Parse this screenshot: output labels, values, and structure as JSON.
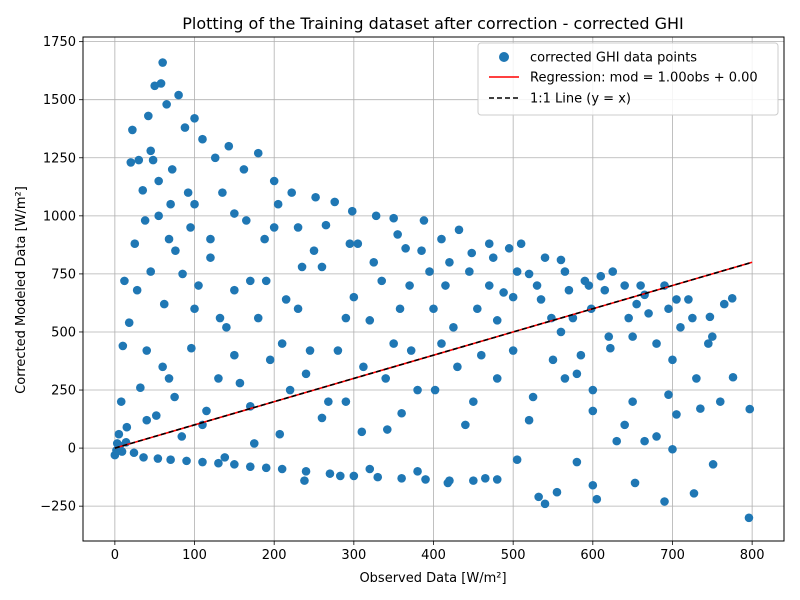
{
  "chart_data": {
    "type": "scatter",
    "title": "Plotting of the Training dataset after correction - corrected GHI",
    "xlabel": "Observed Data [W/m²]",
    "ylabel": "Corrected Modeled Data [W/m²]",
    "xlim": [
      -40,
      840
    ],
    "ylim": [
      -400,
      1770
    ],
    "xticks": [
      0,
      100,
      200,
      300,
      400,
      500,
      600,
      700,
      800
    ],
    "yticks": [
      -250,
      0,
      250,
      500,
      750,
      1000,
      1250,
      1500,
      1750
    ],
    "grid": true,
    "legend_position": "upper-right",
    "colors": {
      "points": "#1f77b4",
      "regression": "#ff0000",
      "identity": "#000000"
    },
    "series": [
      {
        "name": "corrected GHI data points",
        "kind": "scatter",
        "points": [
          [
            797,
            168
          ],
          [
            776,
            305
          ],
          [
            775,
            645
          ],
          [
            751,
            -70
          ],
          [
            750,
            480
          ],
          [
            747,
            565
          ],
          [
            745,
            450
          ],
          [
            727,
            -195
          ],
          [
            735,
            170
          ],
          [
            720,
            640
          ],
          [
            705,
            145
          ],
          [
            700,
            -5
          ],
          [
            695,
            230
          ],
          [
            690,
            700
          ],
          [
            680,
            50
          ],
          [
            670,
            580
          ],
          [
            665,
            30
          ],
          [
            660,
            700
          ],
          [
            653,
            -150
          ],
          [
            650,
            200
          ],
          [
            645,
            560
          ],
          [
            640,
            700
          ],
          [
            630,
            30
          ],
          [
            622,
            430
          ],
          [
            610,
            740
          ],
          [
            605,
            -220
          ],
          [
            600,
            160
          ],
          [
            598,
            600
          ],
          [
            590,
            720
          ],
          [
            585,
            400
          ],
          [
            580,
            -60
          ],
          [
            570,
            680
          ],
          [
            565,
            300
          ],
          [
            560,
            810
          ],
          [
            555,
            -190
          ],
          [
            548,
            560
          ],
          [
            540,
            820
          ],
          [
            532,
            -210
          ],
          [
            525,
            220
          ],
          [
            520,
            750
          ],
          [
            510,
            880
          ],
          [
            505,
            -50
          ],
          [
            500,
            420
          ],
          [
            495,
            860
          ],
          [
            488,
            670
          ],
          [
            480,
            300
          ],
          [
            470,
            880
          ],
          [
            465,
            -130
          ],
          [
            455,
            600
          ],
          [
            448,
            840
          ],
          [
            440,
            100
          ],
          [
            432,
            940
          ],
          [
            425,
            520
          ],
          [
            418,
            -150
          ],
          [
            410,
            900
          ],
          [
            402,
            250
          ],
          [
            395,
            760
          ],
          [
            388,
            980
          ],
          [
            380,
            -100
          ],
          [
            372,
            420
          ],
          [
            365,
            860
          ],
          [
            358,
            600
          ],
          [
            350,
            990
          ],
          [
            342,
            80
          ],
          [
            335,
            720
          ],
          [
            328,
            1000
          ],
          [
            320,
            -90
          ],
          [
            312,
            350
          ],
          [
            305,
            880
          ],
          [
            298,
            1020
          ],
          [
            290,
            560
          ],
          [
            283,
            -120
          ],
          [
            276,
            1060
          ],
          [
            268,
            200
          ],
          [
            260,
            780
          ],
          [
            252,
            1080
          ],
          [
            245,
            420
          ],
          [
            238,
            -140
          ],
          [
            230,
            950
          ],
          [
            222,
            1100
          ],
          [
            215,
            640
          ],
          [
            207,
            60
          ],
          [
            200,
            1150
          ],
          [
            195,
            380
          ],
          [
            188,
            900
          ],
          [
            180,
            1270
          ],
          [
            175,
            20
          ],
          [
            170,
            720
          ],
          [
            162,
            1200
          ],
          [
            157,
            280
          ],
          [
            150,
            1010
          ],
          [
            143,
            1300
          ],
          [
            138,
            -40
          ],
          [
            132,
            560
          ],
          [
            126,
            1250
          ],
          [
            120,
            900
          ],
          [
            115,
            160
          ],
          [
            110,
            1330
          ],
          [
            105,
            700
          ],
          [
            100,
            1420
          ],
          [
            96,
            430
          ],
          [
            92,
            1100
          ],
          [
            88,
            1380
          ],
          [
            84,
            50
          ],
          [
            80,
            1520
          ],
          [
            76,
            850
          ],
          [
            72,
            1200
          ],
          [
            68,
            300
          ],
          [
            65,
            1480
          ],
          [
            62,
            620
          ],
          [
            60,
            1660
          ],
          [
            58,
            1570
          ],
          [
            55,
            1000
          ],
          [
            52,
            140
          ],
          [
            50,
            1560
          ],
          [
            48,
            1240
          ],
          [
            45,
            760
          ],
          [
            42,
            1430
          ],
          [
            40,
            420
          ],
          [
            38,
            980
          ],
          [
            35,
            1110
          ],
          [
            32,
            260
          ],
          [
            30,
            1240
          ],
          [
            28,
            680
          ],
          [
            25,
            880
          ],
          [
            22,
            1370
          ],
          [
            20,
            1230
          ],
          [
            18,
            540
          ],
          [
            15,
            90
          ],
          [
            12,
            720
          ],
          [
            10,
            440
          ],
          [
            8,
            200
          ],
          [
            5,
            60
          ],
          [
            3,
            20
          ],
          [
            0,
            -30
          ],
          [
            2,
            -10
          ],
          [
            6,
            10
          ],
          [
            9,
            -15
          ],
          [
            14,
            25
          ],
          [
            24,
            -20
          ],
          [
            36,
            -40
          ],
          [
            54,
            -45
          ],
          [
            70,
            -50
          ],
          [
            90,
            -55
          ],
          [
            110,
            -60
          ],
          [
            130,
            -65
          ],
          [
            150,
            -70
          ],
          [
            170,
            -80
          ],
          [
            190,
            -85
          ],
          [
            210,
            -90
          ],
          [
            240,
            -100
          ],
          [
            270,
            -110
          ],
          [
            300,
            -120
          ],
          [
            330,
            -125
          ],
          [
            360,
            -130
          ],
          [
            390,
            -135
          ],
          [
            420,
            -140
          ],
          [
            450,
            -140
          ],
          [
            480,
            -135
          ],
          [
            540,
            -240
          ],
          [
            600,
            -160
          ],
          [
            690,
            -230
          ],
          [
            796,
            -300
          ],
          [
            730,
            300
          ],
          [
            710,
            520
          ],
          [
            760,
            200
          ],
          [
            620,
            480
          ],
          [
            560,
            500
          ],
          [
            470,
            700
          ],
          [
            430,
            350
          ],
          [
            360,
            150
          ],
          [
            290,
            200
          ],
          [
            240,
            320
          ],
          [
            210,
            450
          ],
          [
            180,
            560
          ],
          [
            150,
            680
          ],
          [
            120,
            820
          ],
          [
            95,
            950
          ],
          [
            70,
            1050
          ],
          [
            55,
            1150
          ],
          [
            45,
            1280
          ],
          [
            300,
            650
          ],
          [
            350,
            450
          ],
          [
            400,
            600
          ],
          [
            250,
            850
          ],
          [
            200,
            950
          ],
          [
            150,
            400
          ],
          [
            100,
            600
          ],
          [
            85,
            750
          ],
          [
            450,
            200
          ],
          [
            500,
            650
          ],
          [
            550,
            380
          ],
          [
            600,
            250
          ],
          [
            650,
            480
          ],
          [
            700,
            380
          ],
          [
            130,
            300
          ],
          [
            170,
            180
          ],
          [
            220,
            250
          ],
          [
            260,
            130
          ],
          [
            310,
            70
          ],
          [
            340,
            300
          ],
          [
            380,
            250
          ],
          [
            420,
            800
          ],
          [
            460,
            400
          ],
          [
            520,
            120
          ],
          [
            580,
            320
          ],
          [
            640,
            100
          ],
          [
            680,
            450
          ],
          [
            60,
            350
          ],
          [
            75,
            220
          ],
          [
            40,
            120
          ],
          [
            110,
            100
          ],
          [
            140,
            520
          ],
          [
            190,
            720
          ],
          [
            230,
            600
          ],
          [
            280,
            420
          ],
          [
            320,
            550
          ],
          [
            370,
            700
          ],
          [
            410,
            450
          ],
          [
            480,
            550
          ],
          [
            530,
            700
          ],
          [
            575,
            560
          ],
          [
            615,
            680
          ],
          [
            655,
            620
          ],
          [
            695,
            600
          ],
          [
            725,
            560
          ],
          [
            765,
            620
          ],
          [
            68,
            900
          ],
          [
            100,
            1050
          ],
          [
            135,
            1100
          ],
          [
            165,
            980
          ],
          [
            205,
            1050
          ],
          [
            235,
            780
          ],
          [
            265,
            960
          ],
          [
            295,
            880
          ],
          [
            325,
            800
          ],
          [
            355,
            920
          ],
          [
            385,
            850
          ],
          [
            415,
            700
          ],
          [
            445,
            760
          ],
          [
            475,
            820
          ],
          [
            505,
            760
          ],
          [
            535,
            640
          ],
          [
            565,
            760
          ],
          [
            595,
            700
          ],
          [
            625,
            760
          ],
          [
            665,
            660
          ],
          [
            705,
            640
          ]
        ]
      },
      {
        "name": "Regression: mod = 1.00obs + 0.00",
        "kind": "line",
        "slope": 1.0,
        "intercept": 0.0,
        "x_range": [
          0,
          800
        ]
      },
      {
        "name": "1:1 Line (y = x)",
        "kind": "dashed-line",
        "slope": 1.0,
        "intercept": 0.0,
        "x_range": [
          0,
          800
        ]
      }
    ]
  }
}
